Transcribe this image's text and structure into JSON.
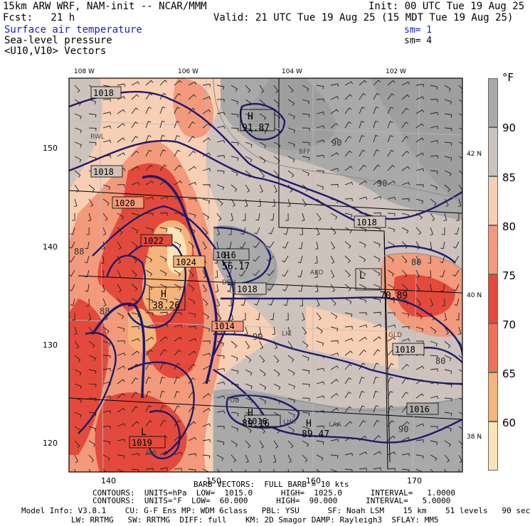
{
  "header": {
    "model_line": "15km ARW WRF, NAM-init -- NCAR/MMM",
    "init_line": "Init: 00 UTC Tue 19 Aug 25",
    "fcst_line": "Fcst:   21 h",
    "valid_line": "Valid: 21 UTC Tue 19 Aug 25 (15 MDT Tue 19 Aug 25)",
    "field1": "Surface air temperature",
    "field1_sm": "sm= 1",
    "field2": "Sea-level pressure",
    "field2_sm": "sm= 4",
    "field3": "<U10,V10> Vectors"
  },
  "map": {
    "lon_labels": [
      "108 W",
      "106 W",
      "104 W",
      "102 W"
    ],
    "lat_labels": [
      "42 N",
      "40 N",
      "38 N"
    ],
    "y_grid_labels": [
      "150",
      "140",
      "130",
      "120"
    ],
    "x_grid_labels": [
      "140",
      "150",
      "160",
      "170"
    ],
    "pressure_labels": [
      "1018",
      "1018",
      "1020",
      "1022",
      "1024",
      "1016",
      "1018",
      "1018",
      "1018",
      "1016",
      "1016",
      "1019",
      "1014"
    ],
    "high_low_labels": [
      {
        "mark": "H",
        "value": "91.87"
      },
      {
        "mark": "H",
        "value": "56.17"
      },
      {
        "mark": "H",
        "value": "38.26"
      },
      {
        "mark": "L",
        "value": "70.89"
      },
      {
        "mark": "H",
        "value": "89.16"
      },
      {
        "mark": "H",
        "value": "89.47"
      },
      {
        "mark": "L",
        "value": "1019"
      }
    ],
    "temp_labels": [
      "90",
      "90",
      "80",
      "90",
      "80",
      "90",
      "88",
      "88"
    ],
    "station_labels": [
      "BFF",
      "AKO",
      "LIC",
      "GLD",
      "LAA",
      "PUB",
      "ALS",
      "RWL",
      "LHX",
      "DEN"
    ]
  },
  "colorbar": {
    "unit": "°F",
    "ticks": [
      "90",
      "85",
      "80",
      "75",
      "70",
      "65",
      "60"
    ],
    "colors": [
      "#a9a9a9",
      "#cdc3bc",
      "#f6cfb4",
      "#f29a7b",
      "#e34a3c",
      "#f07255",
      "#f4b47c",
      "#fce3b8"
    ]
  },
  "footer": {
    "line1": "BARB VECTORS:  FULL BARB = 10 kts",
    "line2": "CONTOURS:  UNITS=hPa  LOW=  1015.0      HIGH=  1025.0      INTERVAL=   1.0000",
    "line3": "CONTOURS:  UNITS=°F  LOW=  60.000      HIGH=  90.000      INTERVAL=   5.0000",
    "line4": "Model Info: V3.8.1    CU: G-F Ens MP: WDM 6class   PBL: YSU      SF: Noah LSM    15 km    51 levels   90 sec",
    "line5": "LW: RRTMG   SW: RRTMG  DIFF: full    KM: 2D Smagor DAMP: Rayleigh3  SFLAY: MM5"
  }
}
